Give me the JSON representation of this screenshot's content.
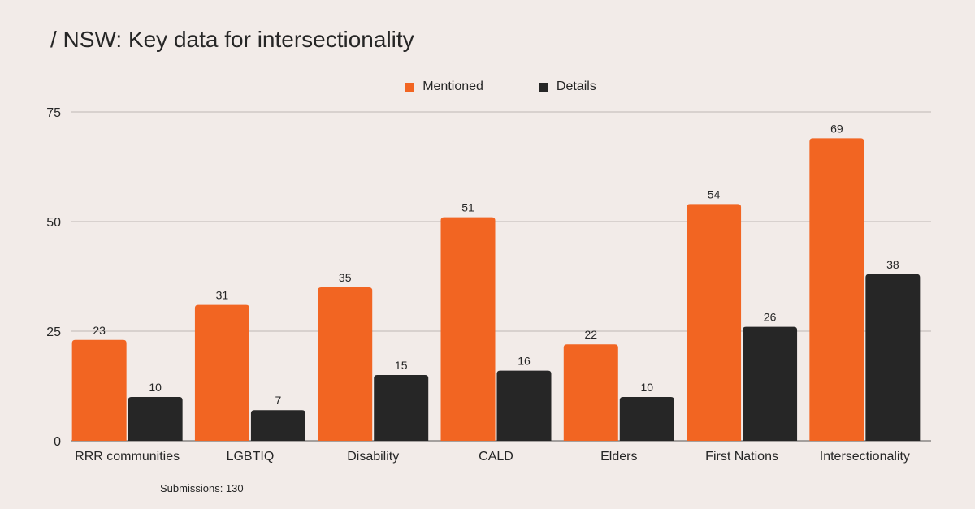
{
  "title": "/ NSW: Key data for intersectionality",
  "footnote": "Submissions: 130",
  "colors": {
    "Mentioned": "#f26522",
    "Details": "#262626",
    "background": "#f2ebe8",
    "grid": "#bdb7b5"
  },
  "chart_data": {
    "type": "bar",
    "title": "/ NSW: Key data for intersectionality",
    "xlabel": "",
    "ylabel": "",
    "ylim": [
      0,
      75
    ],
    "yticks": [
      0,
      25,
      50,
      75
    ],
    "grid": true,
    "legend_position": "top-center",
    "categories": [
      "RRR communities",
      "LGBTIQ",
      "Disability",
      "CALD",
      "Elders",
      "First Nations",
      "Intersectionality"
    ],
    "series": [
      {
        "name": "Mentioned",
        "values": [
          23,
          31,
          35,
          51,
          22,
          54,
          69
        ]
      },
      {
        "name": "Details",
        "values": [
          10,
          7,
          15,
          16,
          10,
          26,
          38
        ]
      }
    ],
    "annotations": [
      "Submissions: 130"
    ]
  }
}
